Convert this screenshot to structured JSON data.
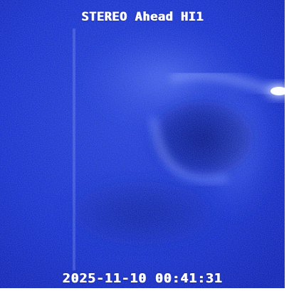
{
  "image": {
    "title": "STEREO Ahead HI1",
    "timestamp": "2025-11-10 00:41:31",
    "colors": {
      "background": "#1a33cc",
      "deep": "#0f1f9e",
      "dark_region": "#132695",
      "bright_feature": "#f4f8ff",
      "text": "#ffffff",
      "border": "#ffffff"
    }
  }
}
